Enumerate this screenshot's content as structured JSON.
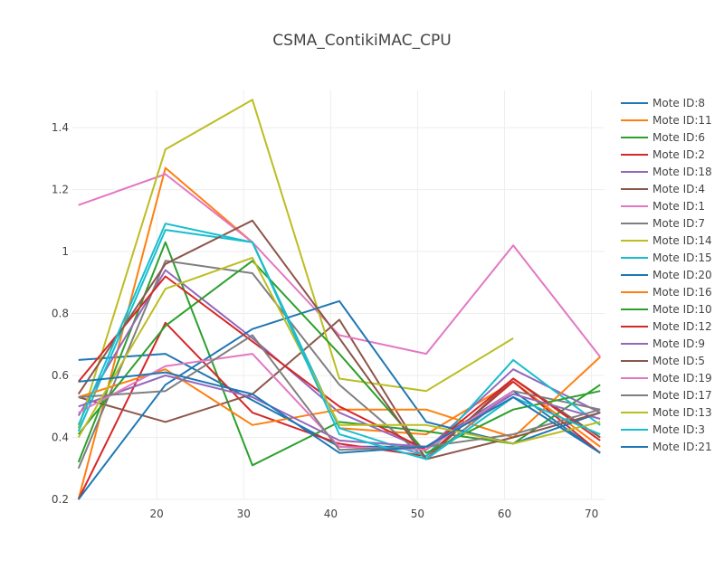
{
  "chart_data": {
    "type": "line",
    "title": "CSMA_ContikiMAC_CPU",
    "xlabel": "",
    "ylabel": "",
    "xlim": [
      10.3,
      71.5
    ],
    "ylim": [
      0.2,
      1.52
    ],
    "x_ticks": [
      20,
      30,
      40,
      50,
      60,
      70
    ],
    "y_ticks": [
      0.2,
      0.4,
      0.6,
      0.8,
      1,
      1.2,
      1.4
    ],
    "y_tick_labels": [
      "0.2",
      "0.4",
      "0.6",
      "0.8",
      "1",
      "1.2",
      "1.4"
    ],
    "grid": true,
    "legend_position": "right",
    "series": [
      {
        "name": "Mote ID:8",
        "color": "#1f77b4",
        "x": [
          11,
          21,
          31,
          41,
          51,
          61,
          71
        ],
        "y": [
          0.65,
          0.67,
          0.52,
          0.37,
          0.37,
          0.55,
          0.35
        ]
      },
      {
        "name": "Mote ID:11",
        "color": "#ff7f0e",
        "x": [
          11,
          21,
          31,
          41,
          51,
          61,
          71
        ],
        "y": [
          0.2,
          1.27,
          1.03,
          0.43,
          0.41,
          0.58,
          0.37
        ]
      },
      {
        "name": "Mote ID:6",
        "color": "#2ca02c",
        "x": [
          11,
          21,
          31,
          41,
          51,
          61,
          71
        ],
        "y": [
          0.32,
          1.03,
          0.31,
          0.45,
          0.42,
          0.38,
          0.57
        ]
      },
      {
        "name": "Mote ID:2",
        "color": "#d62728",
        "x": [
          11,
          21,
          31,
          41,
          51,
          61,
          71
        ],
        "y": [
          0.2,
          0.77,
          0.48,
          0.38,
          0.34,
          0.58,
          0.35
        ]
      },
      {
        "name": "Mote ID:18",
        "color": "#9467bd",
        "x": [
          11,
          21,
          31,
          41,
          51,
          61,
          71
        ],
        "y": [
          0.47,
          0.94,
          0.72,
          0.48,
          0.36,
          0.62,
          0.48
        ]
      },
      {
        "name": "Mote ID:4",
        "color": "#8c564b",
        "x": [
          11,
          21,
          31,
          41,
          51,
          61,
          71
        ],
        "y": [
          0.53,
          0.45,
          0.54,
          0.78,
          0.33,
          0.59,
          0.4
        ]
      },
      {
        "name": "Mote ID:1",
        "color": "#e377c2",
        "x": [
          11,
          21,
          31,
          41,
          51,
          61,
          71
        ],
        "y": [
          1.15,
          1.25,
          1.03,
          0.73,
          0.67,
          1.02,
          0.66
        ]
      },
      {
        "name": "Mote ID:7",
        "color": "#7f7f7f",
        "x": [
          11,
          21,
          31,
          41,
          51,
          61,
          71
        ],
        "y": [
          0.3,
          0.97,
          0.93,
          0.57,
          0.33,
          0.55,
          0.49
        ]
      },
      {
        "name": "Mote ID:14",
        "color": "#bcbd22",
        "x": [
          11,
          21,
          31,
          41,
          51,
          61
        ],
        "y": [
          0.43,
          1.33,
          1.49,
          0.59,
          0.55,
          0.72
        ]
      },
      {
        "name": "Mote ID:15",
        "color": "#17becf",
        "x": [
          11,
          21,
          31,
          41,
          51,
          61,
          71
        ],
        "y": [
          0.42,
          1.07,
          1.03,
          0.43,
          0.34,
          0.65,
          0.44
        ]
      },
      {
        "name": "Mote ID:20",
        "color": "#1f77b4",
        "x": [
          11,
          21,
          31,
          41,
          51,
          61,
          71
        ],
        "y": [
          0.2,
          0.57,
          0.75,
          0.84,
          0.45,
          0.38,
          0.48
        ]
      },
      {
        "name": "Mote ID:16",
        "color": "#ff7f0e",
        "x": [
          11,
          21,
          31,
          41,
          51,
          61,
          71
        ],
        "y": [
          0.53,
          0.62,
          0.44,
          0.49,
          0.49,
          0.4,
          0.66
        ]
      },
      {
        "name": "Mote ID:10",
        "color": "#2ca02c",
        "x": [
          11,
          21,
          31,
          41,
          51,
          61,
          71
        ],
        "y": [
          0.41,
          0.76,
          0.97,
          0.67,
          0.35,
          0.49,
          0.55
        ]
      },
      {
        "name": "Mote ID:12",
        "color": "#d62728",
        "x": [
          11,
          21,
          31,
          41,
          51,
          61,
          71
        ],
        "y": [
          0.58,
          0.92,
          0.71,
          0.5,
          0.36,
          0.59,
          0.39
        ]
      },
      {
        "name": "Mote ID:9",
        "color": "#9467bd",
        "x": [
          11,
          21,
          31,
          41,
          51,
          61,
          71
        ],
        "y": [
          0.5,
          0.6,
          0.53,
          0.39,
          0.37,
          0.54,
          0.46
        ]
      },
      {
        "name": "Mote ID:5",
        "color": "#8c564b",
        "x": [
          11,
          21,
          31,
          41,
          51,
          61,
          71
        ],
        "y": [
          0.54,
          0.96,
          1.1,
          0.72,
          0.33,
          0.4,
          0.48
        ]
      },
      {
        "name": "Mote ID:19",
        "color": "#e377c2",
        "x": [
          11,
          21,
          31,
          41,
          51,
          61
        ],
        "y": [
          0.48,
          0.63,
          0.67,
          0.37,
          0.36,
          0.55
        ]
      },
      {
        "name": "Mote ID:17",
        "color": "#7f7f7f",
        "x": [
          11,
          21,
          31,
          41,
          51,
          61,
          71
        ],
        "y": [
          0.53,
          0.55,
          0.73,
          0.36,
          0.37,
          0.41,
          0.49
        ]
      },
      {
        "name": "Mote ID:13",
        "color": "#bcbd22",
        "x": [
          11,
          21,
          31,
          41,
          51,
          61,
          71
        ],
        "y": [
          0.4,
          0.88,
          0.98,
          0.44,
          0.44,
          0.38,
          0.45
        ]
      },
      {
        "name": "Mote ID:3",
        "color": "#17becf",
        "x": [
          11,
          21,
          31,
          41,
          51,
          61,
          71
        ],
        "y": [
          0.44,
          1.09,
          1.03,
          0.41,
          0.33,
          0.53,
          0.41
        ]
      },
      {
        "name": "Mote ID:21",
        "color": "#1f77b4",
        "x": [
          11,
          21,
          31,
          41,
          51,
          61,
          71
        ],
        "y": [
          0.58,
          0.61,
          0.54,
          0.35,
          0.37,
          0.53,
          0.35
        ]
      }
    ]
  }
}
